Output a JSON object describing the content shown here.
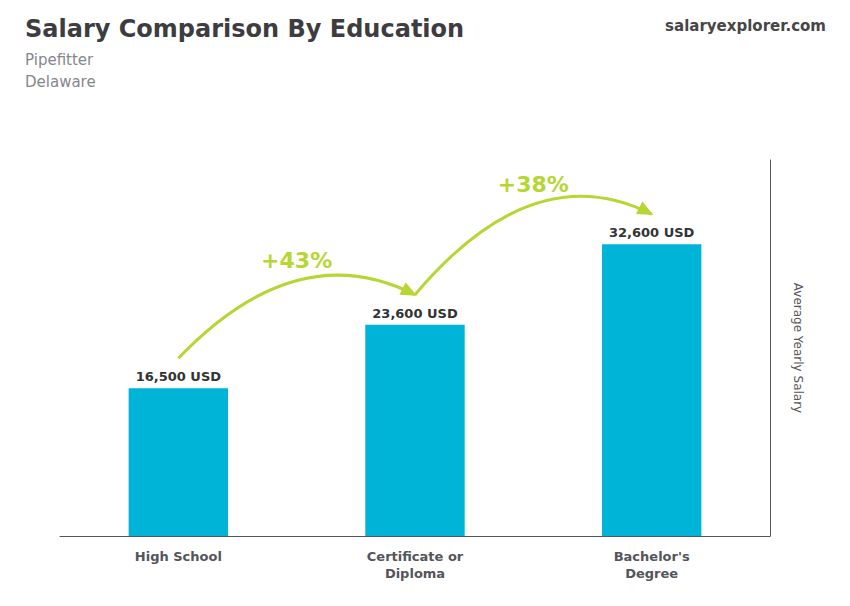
{
  "chart_data": {
    "type": "bar",
    "title": "Salary Comparison By Education",
    "subtitle": [
      "Pipefitter",
      "Delaware"
    ],
    "ylabel": "Average Yearly Salary",
    "categories": [
      "High School",
      "Certificate or\nDiploma",
      "Bachelor's\nDegree"
    ],
    "values": [
      16500,
      23600,
      32600
    ],
    "value_labels": [
      "16,500 USD",
      "23,600 USD",
      "32,600 USD"
    ],
    "data_labels": true,
    "color": "#00B4D8",
    "ylim": [
      0,
      42000
    ],
    "tick_labels": "x",
    "grid": false,
    "annotations": [
      {
        "text": "+43%",
        "from": "High School",
        "to": "Certificate or\nDiploma"
      },
      {
        "text": "+38%",
        "from": "Certificate or\nDiploma",
        "to": "Bachelor's\nDegree"
      },
      {
        "text": "salaryexplorer.com"
      }
    ]
  }
}
